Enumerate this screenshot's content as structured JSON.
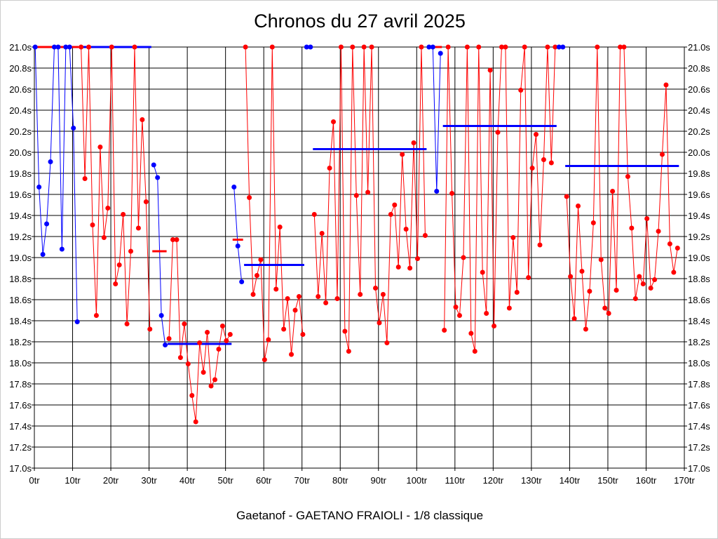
{
  "chart_data": {
    "type": "line",
    "title": "Chronos du 27 avril 2025",
    "xlabel": "Gaetanof - GAETANO FRAIOLI - 1/8 classique",
    "ylabel": "",
    "xlim": [
      0,
      170
    ],
    "ylim": [
      17.0,
      21.0
    ],
    "x_ticks": [
      "0tr",
      "10tr",
      "20tr",
      "30tr",
      "40tr",
      "50tr",
      "60tr",
      "70tr",
      "80tr",
      "90tr",
      "100tr",
      "110tr",
      "120tr",
      "130tr",
      "140tr",
      "150tr",
      "160tr",
      "170tr"
    ],
    "y_ticks": [
      "17.0s",
      "17.2s",
      "17.4s",
      "17.6s",
      "17.8s",
      "18.0s",
      "18.2s",
      "18.4s",
      "18.6s",
      "18.8s",
      "19.0s",
      "19.2s",
      "19.4s",
      "19.6s",
      "19.8s",
      "20.0s",
      "20.2s",
      "20.4s",
      "20.6s",
      "20.8s",
      "21.0s"
    ],
    "grid": true,
    "colors": {
      "blue": "#0000ff",
      "red": "#ff0000",
      "grid": "#000000"
    },
    "stints": [
      {
        "color": "blue",
        "from": 0,
        "to": 11,
        "mean": 21.0,
        "values": [
          21.0,
          19.67,
          19.03,
          19.32,
          19.91,
          21.0,
          21.0,
          19.08,
          21.0,
          21.0,
          20.23,
          18.39
        ]
      },
      {
        "color": "red",
        "from": 12,
        "to": 30,
        "mean": 21.0,
        "values": [
          21.0,
          19.75,
          21.0,
          19.31,
          18.45,
          20.05,
          19.19,
          19.47,
          21.0,
          18.75,
          18.93,
          19.41,
          18.37,
          19.06,
          21.0,
          19.28,
          20.31,
          19.53,
          18.32
        ]
      },
      {
        "color": "blue",
        "from": 31,
        "to": 34,
        "mean": 19.06,
        "values": [
          19.88,
          19.76,
          18.45,
          18.17
        ]
      },
      {
        "color": "red",
        "from": 35,
        "to": 51,
        "mean": 18.18,
        "values": [
          18.23,
          19.17,
          19.17,
          18.05,
          18.37,
          17.99,
          17.69,
          17.44,
          18.19,
          17.91,
          18.29,
          17.78,
          17.84,
          18.13,
          18.35,
          18.21,
          18.27
        ]
      },
      {
        "color": "blue",
        "from": 52,
        "to": 54,
        "mean": 19.17,
        "values": [
          19.67,
          19.11,
          18.77
        ]
      },
      {
        "color": "red",
        "from": 55,
        "to": 70,
        "mean": 18.93,
        "values": [
          21.0,
          19.57,
          18.65,
          18.83,
          18.98,
          18.03,
          18.22,
          21.0,
          18.7,
          19.29,
          18.32,
          18.61,
          18.08,
          18.5,
          18.63,
          18.27
        ]
      },
      {
        "color": "blue",
        "from": 71,
        "to": 72,
        "mean": 21.0,
        "values": [
          21.0,
          21.0
        ]
      },
      {
        "color": "red",
        "from": 73,
        "to": 102,
        "mean": 20.03,
        "values": [
          19.41,
          18.63,
          19.23,
          18.57,
          19.85,
          20.29,
          18.61,
          21.0,
          18.3,
          18.11,
          21.0,
          19.59,
          18.65,
          21.0,
          19.62,
          21.0,
          18.71,
          18.38,
          18.65,
          18.19,
          19.41,
          19.5,
          18.91,
          19.98,
          19.27,
          18.9,
          20.09,
          18.99,
          21.0,
          19.21
        ]
      },
      {
        "color": "blue",
        "from": 103,
        "to": 106,
        "mean": 21.0,
        "values": [
          21.0,
          21.0,
          19.63,
          20.94
        ]
      },
      {
        "color": "red",
        "from": 107,
        "to": 136,
        "mean": 20.25,
        "values": [
          18.31,
          21.0,
          19.61,
          18.53,
          18.45,
          19.0,
          21.0,
          18.28,
          18.11,
          21.0,
          18.86,
          18.47,
          20.78,
          18.35,
          20.19,
          21.0,
          21.0,
          18.52,
          19.19,
          18.67,
          20.59,
          21.0,
          18.81,
          19.85,
          20.17,
          19.12,
          19.93,
          21.0,
          19.9,
          21.0
        ]
      },
      {
        "color": "blue",
        "from": 137,
        "to": 138,
        "mean": 21.0,
        "values": [
          21.0,
          21.0
        ]
      },
      {
        "color": "red",
        "from": 139,
        "to": 168,
        "mean": 19.87,
        "values": [
          19.58,
          18.82,
          18.42,
          19.49,
          18.87,
          18.32,
          18.68,
          19.33,
          21.0,
          18.98,
          18.52,
          18.47,
          19.63,
          18.69,
          21.0,
          21.0,
          19.77,
          19.28,
          18.61,
          18.82,
          18.75,
          19.37,
          18.71,
          18.79,
          19.25,
          19.98,
          20.64,
          19.13,
          18.86,
          19.09
        ]
      }
    ]
  }
}
